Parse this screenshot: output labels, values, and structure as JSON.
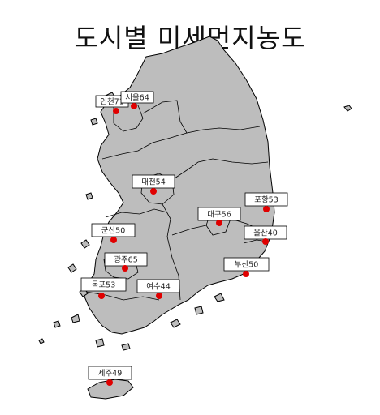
{
  "title": "도시별 미세먼지농도",
  "colors": {
    "land": "#bdbdbd",
    "border": "#000000",
    "marker": "#e00000"
  },
  "cities": [
    {
      "name": "인천",
      "value": 71,
      "label": "인천71"
    },
    {
      "name": "서울",
      "value": 64,
      "label": "서울64"
    },
    {
      "name": "대전",
      "value": 54,
      "label": "대전54"
    },
    {
      "name": "포항",
      "value": 53,
      "label": "포항53"
    },
    {
      "name": "대구",
      "value": 56,
      "label": "대구56"
    },
    {
      "name": "군산",
      "value": 50,
      "label": "군산50"
    },
    {
      "name": "울산",
      "value": 40,
      "label": "울산40"
    },
    {
      "name": "광주",
      "value": 65,
      "label": "광주65"
    },
    {
      "name": "부산",
      "value": 50,
      "label": "부산50"
    },
    {
      "name": "목포",
      "value": 53,
      "label": "목포53"
    },
    {
      "name": "여수",
      "value": 44,
      "label": "여수44"
    },
    {
      "name": "제주",
      "value": 49,
      "label": "제주49"
    }
  ]
}
